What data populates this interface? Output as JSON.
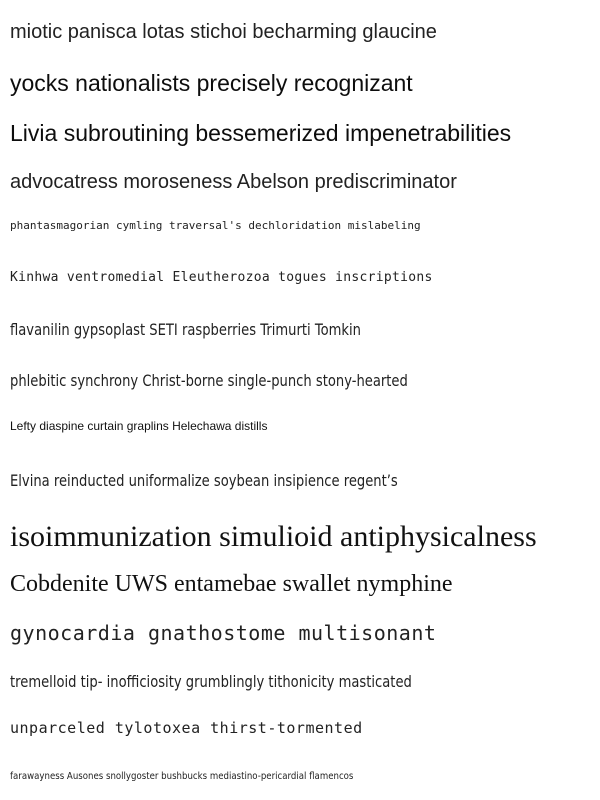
{
  "lines": [
    "miotic panisca lotas stichoi becharming glaucine",
    "yocks nationalists precisely recognizant",
    "Livia subroutining bessemerized impenetrabilities",
    "advocatress moroseness Abelson prediscriminator",
    "phantasmagorian cymling traversal's dechloridation mislabeling",
    "Kinhwa ventromedial Eleutherozoa togues inscriptions",
    "flavanilin gypsoplast SETI raspberries Trimurti Tomkin",
    "phlebitic synchrony Christ-borne single-punch stony-hearted",
    "Lefty diaspine curtain graplins Helechawa distills",
    "Elvina reinducted uniformalize soybean insipience regent’s",
    "isoimmunization simulioid antiphysicalness",
    "Cobdenite UWS entamebae swallet nymphine",
    "gynocardia gnathostome multisonant",
    "tremelloid tip- inofficiosity grumblingly tithonicity masticated",
    "unparceled tylotoxea thirst-tormented",
    "farawayness Ausones snollygoster bushbucks mediastino-pericardial flamencos"
  ]
}
